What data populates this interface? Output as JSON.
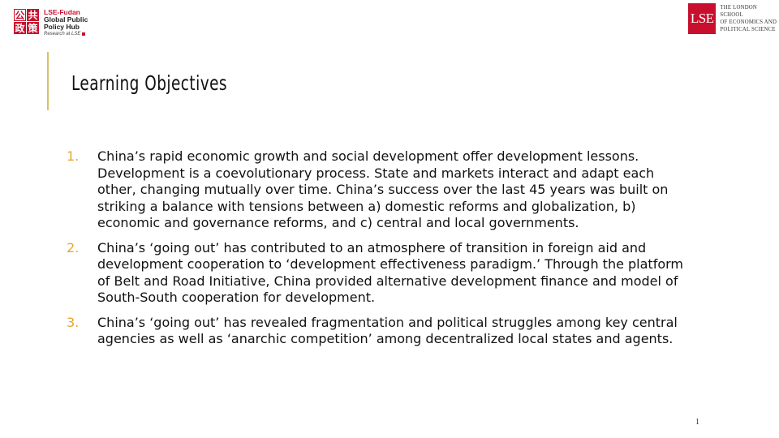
{
  "hub_logo": {
    "chars": [
      "公",
      "共",
      "政",
      "策"
    ],
    "name": "LSE-Fudan",
    "line2": "Global Public",
    "line3": "Policy Hub",
    "research": "Research at LSE"
  },
  "lse_logo": {
    "mark": "LSE",
    "line1": "The London School",
    "line2": "of Economics and",
    "line3": "Political Science"
  },
  "slide": {
    "title": "Learning Objectives",
    "objectives": [
      {
        "number": "1.",
        "text": "China’s rapid economic growth and social development offer development lessons. Development is a coevolutionary process. State and markets interact and adapt each other, changing mutually over time. China’s success over the last 45 years was built on striking a balance with tensions between a) domestic reforms and globalization, b) economic and governance reforms, and c) central and local governments."
      },
      {
        "number": "2.",
        "text": "China’s ‘going out’ has contributed to an atmosphere of transition in foreign aid and development cooperation to ‘development effectiveness paradigm.’ Through the platform of Belt and Road Initiative, China provided alternative development finance and model of South-South cooperation for development."
      },
      {
        "number": "3.",
        "text": "China’s ‘going out’ has revealed fragmentation and political struggles among key central agencies as well as ‘anarchic competition’ among decentralized local states and agents."
      }
    ],
    "page_number": "1"
  },
  "colors": {
    "accent_gold": "#d8c06a",
    "number_orange": "#e3a733",
    "brand_red": "#c8102e"
  }
}
